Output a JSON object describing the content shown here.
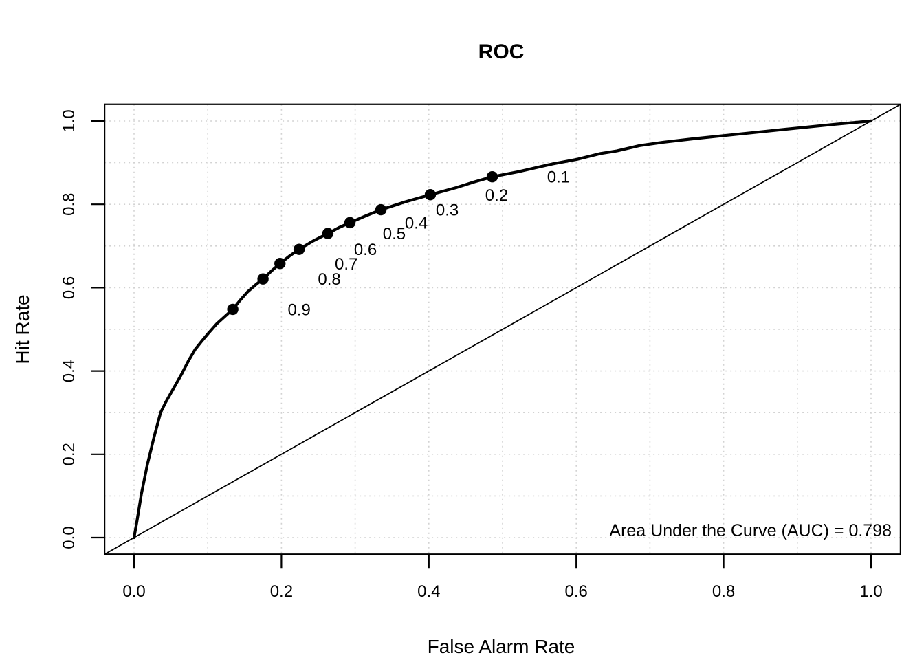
{
  "chart_data": {
    "type": "line",
    "title": "ROC",
    "xlabel": "False Alarm Rate",
    "ylabel": "Hit Rate",
    "xlim": [
      0,
      1
    ],
    "ylim": [
      0,
      1
    ],
    "xticks": [
      "0.0",
      "0.2",
      "0.4",
      "0.6",
      "0.8",
      "1.0"
    ],
    "yticks": [
      "0.0",
      "0.2",
      "0.4",
      "0.6",
      "0.8",
      "1.0"
    ],
    "grid": {
      "show": true,
      "interval": 0.1,
      "line_style": "dotted",
      "color": "#d2d2d2"
    },
    "colors": {
      "curve": "#000000",
      "diagonal": "#000000",
      "points": "#000000",
      "box": "#000000"
    },
    "series": [
      {
        "name": "ROC curve",
        "points": [
          [
            0.0,
            0.0
          ],
          [
            0.004,
            0.04
          ],
          [
            0.01,
            0.105
          ],
          [
            0.018,
            0.175
          ],
          [
            0.027,
            0.24
          ],
          [
            0.036,
            0.3
          ],
          [
            0.043,
            0.325
          ],
          [
            0.05,
            0.347
          ],
          [
            0.058,
            0.372
          ],
          [
            0.065,
            0.394
          ],
          [
            0.074,
            0.425
          ],
          [
            0.083,
            0.452
          ],
          [
            0.092,
            0.472
          ],
          [
            0.101,
            0.491
          ],
          [
            0.112,
            0.513
          ],
          [
            0.122,
            0.529
          ],
          [
            0.134,
            0.548
          ],
          [
            0.144,
            0.57
          ],
          [
            0.154,
            0.59
          ],
          [
            0.165,
            0.607
          ],
          [
            0.175,
            0.621
          ],
          [
            0.187,
            0.641
          ],
          [
            0.198,
            0.658
          ],
          [
            0.211,
            0.676
          ],
          [
            0.224,
            0.692
          ],
          [
            0.243,
            0.712
          ],
          [
            0.263,
            0.73
          ],
          [
            0.278,
            0.744
          ],
          [
            0.293,
            0.756
          ],
          [
            0.314,
            0.772
          ],
          [
            0.335,
            0.787
          ],
          [
            0.368,
            0.806
          ],
          [
            0.402,
            0.823
          ],
          [
            0.437,
            0.84
          ],
          [
            0.462,
            0.854
          ],
          [
            0.486,
            0.866
          ],
          [
            0.521,
            0.878
          ],
          [
            0.553,
            0.891
          ],
          [
            0.568,
            0.897
          ],
          [
            0.601,
            0.908
          ],
          [
            0.633,
            0.922
          ],
          [
            0.655,
            0.928
          ],
          [
            0.686,
            0.941
          ],
          [
            0.718,
            0.949
          ],
          [
            0.762,
            0.958
          ],
          [
            0.801,
            0.965
          ],
          [
            0.85,
            0.974
          ],
          [
            0.9,
            0.983
          ],
          [
            0.951,
            0.992
          ],
          [
            1.0,
            1.0
          ]
        ]
      },
      {
        "name": "chance diagonal",
        "points": [
          [
            -0.04,
            -0.04
          ],
          [
            1.04,
            1.04
          ]
        ]
      }
    ],
    "threshold_points": [
      {
        "label": "0.9",
        "x": 0.134,
        "y": 0.548
      },
      {
        "label": "0.8",
        "x": 0.175,
        "y": 0.621
      },
      {
        "label": "0.7",
        "x": 0.198,
        "y": 0.658
      },
      {
        "label": "0.6",
        "x": 0.224,
        "y": 0.692
      },
      {
        "label": "0.5",
        "x": 0.263,
        "y": 0.73
      },
      {
        "label": "0.4",
        "x": 0.293,
        "y": 0.756
      },
      {
        "label": "0.3",
        "x": 0.335,
        "y": 0.787
      },
      {
        "label": "0.2",
        "x": 0.402,
        "y": 0.823
      },
      {
        "label": "0.1",
        "x": 0.486,
        "y": 0.866
      }
    ],
    "threshold_label_offset_x": 0.09,
    "annotation": {
      "text": "Area Under the Curve (AUC) = 0.798",
      "auc": 0.798
    }
  }
}
